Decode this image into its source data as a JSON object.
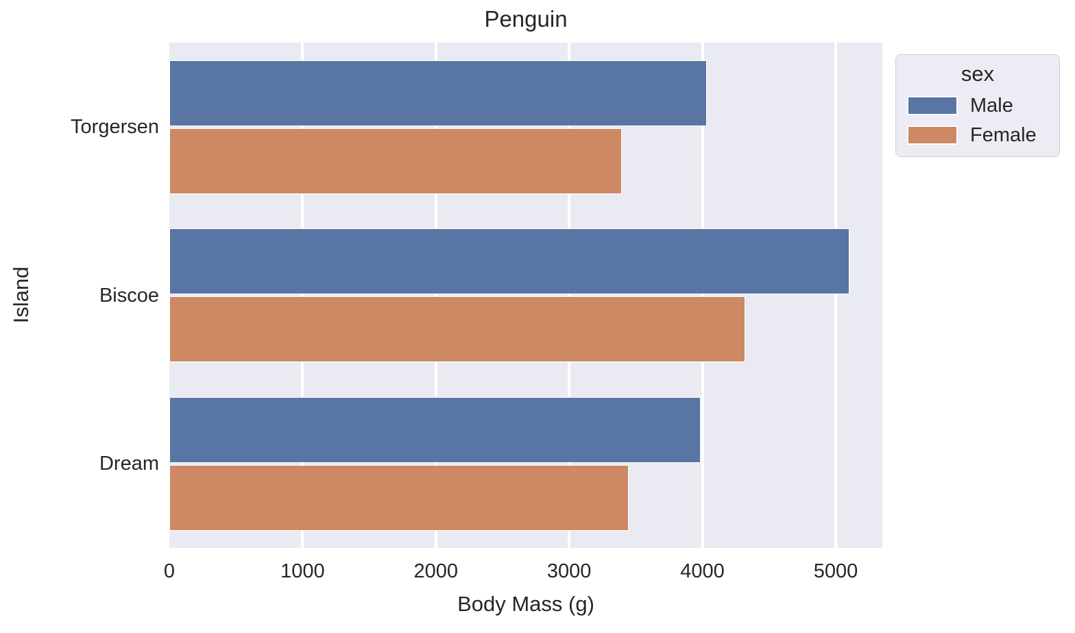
{
  "chart_data": {
    "type": "bar",
    "orientation": "horizontal",
    "title": "Penguin",
    "xlabel": "Body Mass (g)",
    "ylabel": "Island",
    "categories": [
      "Torgersen",
      "Biscoe",
      "Dream"
    ],
    "series": [
      {
        "name": "Male",
        "color": "#5875a4",
        "values": [
          4034,
          5105,
          3987
        ]
      },
      {
        "name": "Female",
        "color": "#cc8963",
        "values": [
          3396,
          4319,
          3446
        ]
      }
    ],
    "xticks": [
      0,
      1000,
      2000,
      3000,
      4000,
      5000
    ],
    "xtick_labels": [
      "0",
      "1000",
      "2000",
      "3000",
      "4000",
      "5000"
    ],
    "xlim": [
      0,
      5350
    ],
    "legend": {
      "title": "sex",
      "entries": [
        "Male",
        "Female"
      ],
      "position": "upper-right-outside"
    },
    "style": {
      "plot_background": "#eaeaf2",
      "gridline_color": "#ffffff",
      "grid": "vertical",
      "text_color": "#262626",
      "legend_background": "#ececf4"
    }
  }
}
